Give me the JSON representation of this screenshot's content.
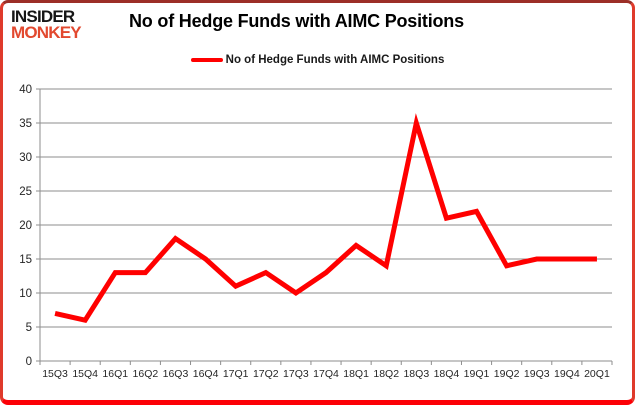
{
  "header": {
    "logo_line1": "INSIDER",
    "logo_line2": "MONKEY",
    "title": "No of Hedge Funds with AIMC Positions"
  },
  "legend": {
    "label": "No of Hedge Funds with AIMC Positions"
  },
  "colors": {
    "line": "#ff0000",
    "grid": "#8e8e8e",
    "axis_text": "#262626",
    "border_red": "#df3a2b",
    "logo_red": "#e2492f"
  },
  "chart_data": {
    "type": "line",
    "title": "No of Hedge Funds with AIMC Positions",
    "categories": [
      "15Q3",
      "15Q4",
      "16Q1",
      "16Q2",
      "16Q3",
      "16Q4",
      "17Q1",
      "17Q2",
      "17Q3",
      "17Q4",
      "18Q1",
      "18Q2",
      "18Q3",
      "18Q4",
      "19Q1",
      "19Q2",
      "19Q3",
      "19Q4",
      "20Q1"
    ],
    "series": [
      {
        "name": "No of Hedge Funds with AIMC Positions",
        "values": [
          7,
          6,
          13,
          13,
          18,
          15,
          11,
          13,
          10,
          13,
          17,
          14,
          35,
          21,
          22,
          14,
          15,
          15,
          15
        ]
      }
    ],
    "xlabel": "",
    "ylabel": "",
    "ylim": [
      0,
      40
    ],
    "ytick_step": 5,
    "grid": true,
    "legend_position": "top"
  }
}
